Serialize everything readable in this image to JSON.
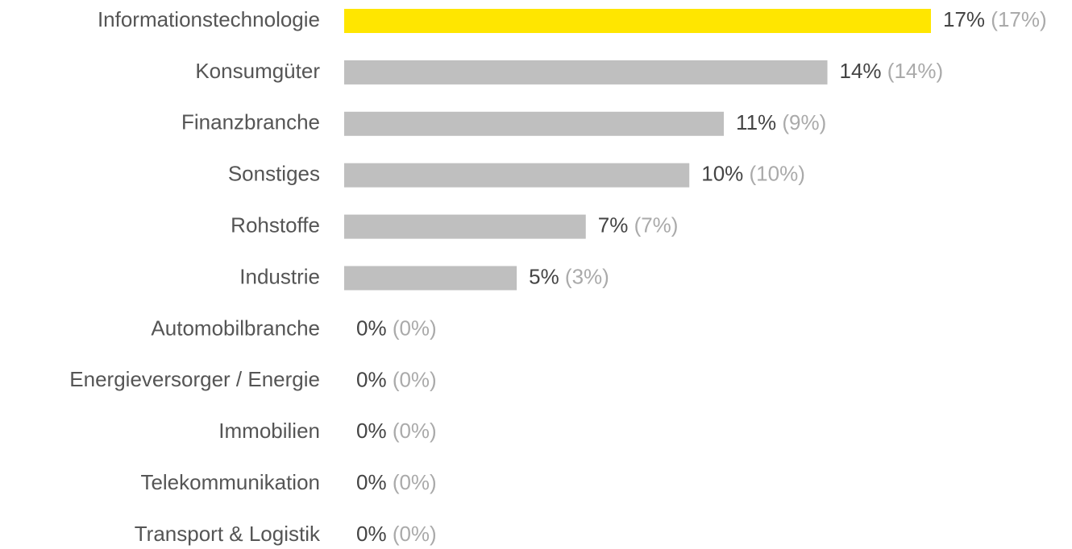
{
  "chart_data": {
    "type": "hbar",
    "categories": [
      "Informationstechnologie",
      "Konsumgüter",
      "Finanzbranche",
      "Sonstiges",
      "Rohstoffe",
      "Industrie",
      "Automobilbranche",
      "Energieversorger / Energie",
      "Immobilien",
      "Telekommunikation",
      "Transport & Logistik"
    ],
    "series": [
      {
        "values": [
          17,
          14,
          11,
          10,
          7,
          5,
          0,
          0,
          0,
          0,
          0
        ],
        "value_labels": [
          "17%",
          "14%",
          "11%",
          "10%",
          "7%",
          "5%",
          "0%",
          "0%",
          "0%",
          "0%",
          "0%"
        ],
        "colors": [
          "#ffe600",
          "#bfbfbf",
          "#bfbfbf",
          "#bfbfbf",
          "#bfbfbf",
          "#bfbfbf",
          "#bfbfbf",
          "#bfbfbf",
          "#bfbfbf",
          "#bfbfbf",
          "#bfbfbf"
        ]
      },
      {
        "values": [
          17,
          14,
          9,
          10,
          7,
          3,
          0,
          0,
          0,
          0,
          0
        ],
        "value_labels": [
          "(17%)",
          "(14%)",
          "(9%)",
          "(10%)",
          "(7%)",
          "(3%)",
          "(0%)",
          "(0%)",
          "(0%)",
          "(0%)",
          "(0%)"
        ]
      }
    ]
  }
}
